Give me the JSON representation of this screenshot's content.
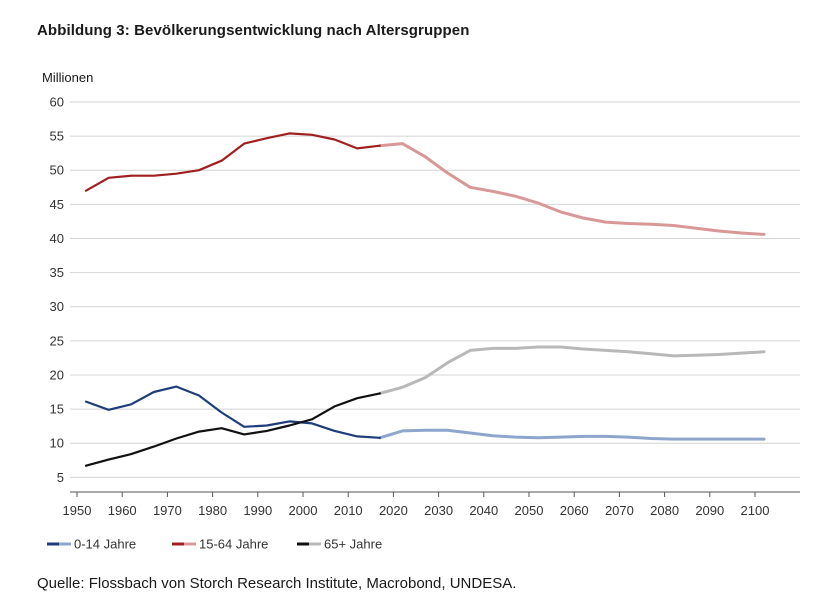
{
  "title": "Abbildung 3: Bevölkerungsentwicklung nach Altersgruppen",
  "source": "Quelle: Flossbach von Storch Research Institute, Macrobond, UNDESA.",
  "chart_data": {
    "type": "line",
    "title": "Abbildung 3: Bevölkerungsentwicklung nach Altersgruppen",
    "ylabel": "Millionen",
    "xlabel": "",
    "xlim": [
      1950,
      2110
    ],
    "ylim": [
      3,
      60
    ],
    "x_ticks": [
      1950,
      1960,
      1970,
      1980,
      1990,
      2000,
      2010,
      2020,
      2030,
      2040,
      2050,
      2060,
      2070,
      2080,
      2090,
      2100
    ],
    "y_ticks": [
      5,
      10,
      15,
      20,
      25,
      30,
      35,
      40,
      45,
      50,
      55,
      60
    ],
    "grid": "horizontal",
    "legend_position": "bottom-left",
    "projection_start": 2017,
    "x": [
      1952,
      1957,
      1962,
      1967,
      1972,
      1977,
      1982,
      1987,
      1992,
      1997,
      2002,
      2007,
      2012,
      2017,
      2022,
      2027,
      2032,
      2037,
      2042,
      2047,
      2052,
      2057,
      2062,
      2067,
      2072,
      2077,
      2082,
      2087,
      2092,
      2097,
      2102
    ],
    "series": [
      {
        "name": "0-14 Jahre",
        "color": "#1f3d7a",
        "projection_color": "#8ea6cc",
        "values": [
          16.1,
          14.9,
          15.7,
          17.5,
          18.3,
          17.0,
          14.5,
          12.4,
          12.6,
          13.2,
          12.9,
          11.8,
          11.0,
          10.8,
          11.8,
          11.9,
          11.9,
          11.5,
          11.1,
          10.9,
          10.8,
          10.9,
          11.0,
          11.0,
          10.9,
          10.7,
          10.6,
          10.6,
          10.6,
          10.6,
          10.6
        ]
      },
      {
        "name": "15-64 Jahre",
        "color": "#a01f1f",
        "projection_color": "#d99898",
        "values": [
          47.0,
          48.9,
          49.2,
          49.2,
          49.5,
          50.0,
          51.4,
          53.9,
          54.7,
          55.4,
          55.2,
          54.5,
          53.2,
          53.6,
          53.9,
          52.0,
          49.6,
          47.5,
          46.9,
          46.2,
          45.2,
          43.9,
          43.0,
          42.4,
          42.2,
          42.1,
          41.9,
          41.5,
          41.1,
          40.8,
          40.6
        ]
      },
      {
        "name": "65+ Jahre",
        "color": "#111111",
        "projection_color": "#b8b8b8",
        "values": [
          6.7,
          7.6,
          8.4,
          9.5,
          10.7,
          11.7,
          12.2,
          11.3,
          11.8,
          12.6,
          13.5,
          15.4,
          16.6,
          17.3,
          18.2,
          19.6,
          21.8,
          23.6,
          23.9,
          23.9,
          24.1,
          24.1,
          23.8,
          23.6,
          23.4,
          23.1,
          22.8,
          22.9,
          23.0,
          23.2,
          23.4
        ]
      }
    ]
  }
}
